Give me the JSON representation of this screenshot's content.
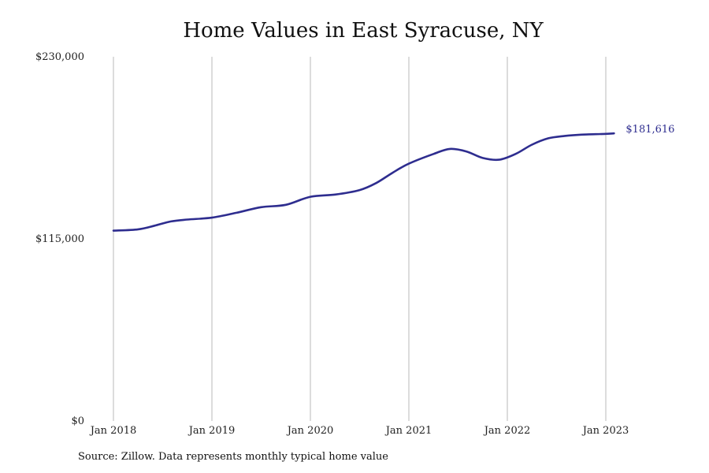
{
  "chart_data": {
    "type": "line",
    "title": "Home Values in East Syracuse, NY",
    "ylim": [
      0,
      230000
    ],
    "xlim": [
      "2018-01",
      "2023-02"
    ],
    "y_ticks": [
      {
        "value": 0,
        "label": "$0"
      },
      {
        "value": 115000,
        "label": "$115,000"
      },
      {
        "value": 230000,
        "label": "$230,000"
      }
    ],
    "x_ticks": [
      {
        "date": "2018-01",
        "label": "Jan 2018"
      },
      {
        "date": "2019-01",
        "label": "Jan 2019"
      },
      {
        "date": "2020-01",
        "label": "Jan 2020"
      },
      {
        "date": "2021-01",
        "label": "Jan 2021"
      },
      {
        "date": "2022-01",
        "label": "Jan 2022"
      },
      {
        "date": "2023-01",
        "label": "Jan 2023"
      }
    ],
    "grid": "vertical",
    "line_color": "#2e2d8f",
    "series": [
      {
        "points": [
          {
            "x": "2018-01",
            "y": 120200
          },
          {
            "x": "2018-04",
            "y": 121000
          },
          {
            "x": "2018-06",
            "y": 123300
          },
          {
            "x": "2018-08",
            "y": 126000
          },
          {
            "x": "2018-10",
            "y": 127200
          },
          {
            "x": "2019-01",
            "y": 128400
          },
          {
            "x": "2019-04",
            "y": 131500
          },
          {
            "x": "2019-07",
            "y": 135000
          },
          {
            "x": "2019-10",
            "y": 136500
          },
          {
            "x": "2020-01",
            "y": 141600
          },
          {
            "x": "2020-04",
            "y": 143000
          },
          {
            "x": "2020-07",
            "y": 145800
          },
          {
            "x": "2020-09",
            "y": 150200
          },
          {
            "x": "2020-11",
            "y": 156700
          },
          {
            "x": "2021-01",
            "y": 162500
          },
          {
            "x": "2021-04",
            "y": 168600
          },
          {
            "x": "2021-06",
            "y": 171800
          },
          {
            "x": "2021-08",
            "y": 170200
          },
          {
            "x": "2021-10",
            "y": 166100
          },
          {
            "x": "2021-12",
            "y": 165000
          },
          {
            "x": "2022-02",
            "y": 168600
          },
          {
            "x": "2022-04",
            "y": 174500
          },
          {
            "x": "2022-06",
            "y": 178500
          },
          {
            "x": "2022-08",
            "y": 180000
          },
          {
            "x": "2022-10",
            "y": 180800
          },
          {
            "x": "2023-01",
            "y": 181300
          },
          {
            "x": "2023-02",
            "y": 181616
          }
        ]
      }
    ],
    "end_label": "$181,616"
  },
  "source_note": "Source: Zillow. Data represents monthly typical home value"
}
